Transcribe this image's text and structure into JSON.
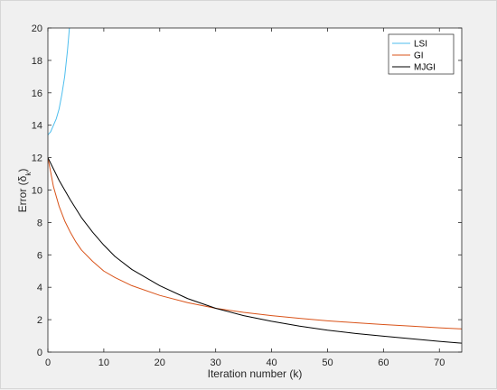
{
  "chart_data": {
    "type": "line",
    "xlabel": "Iteration number (k)",
    "ylabel_prefix": "Error (",
    "ylabel_symbol": "δ",
    "ylabel_subscript": "k",
    "ylabel_suffix": ")",
    "xlim": [
      0,
      74
    ],
    "ylim": [
      0,
      20
    ],
    "xticks": [
      0,
      10,
      20,
      30,
      40,
      50,
      60,
      70
    ],
    "yticks": [
      0,
      2,
      4,
      6,
      8,
      10,
      12,
      14,
      16,
      18,
      20
    ],
    "grid": false,
    "legend_position": "top-right",
    "series": [
      {
        "name": "LSI",
        "color": "#4dbeee",
        "x": [
          0,
          0.5,
          1,
          1.5,
          2,
          2.5,
          3,
          3.5,
          4
        ],
        "y": [
          13.4,
          13.6,
          14.0,
          14.4,
          15.0,
          15.9,
          17.0,
          18.6,
          20.6
        ]
      },
      {
        "name": "GI",
        "color": "#d95319",
        "x": [
          0,
          1,
          2,
          3,
          4,
          5,
          6,
          8,
          10,
          12,
          15,
          20,
          25,
          30,
          35,
          40,
          45,
          50,
          55,
          60,
          65,
          70,
          74
        ],
        "y": [
          12.0,
          10.2,
          9.0,
          8.1,
          7.4,
          6.8,
          6.3,
          5.6,
          5.0,
          4.6,
          4.1,
          3.5,
          3.05,
          2.7,
          2.45,
          2.25,
          2.08,
          1.93,
          1.81,
          1.7,
          1.6,
          1.5,
          1.43
        ]
      },
      {
        "name": "MJGI",
        "color": "#000000",
        "x": [
          0,
          2,
          4,
          6,
          8,
          10,
          12,
          15,
          20,
          25,
          30,
          35,
          40,
          45,
          50,
          55,
          60,
          65,
          70,
          74
        ],
        "y": [
          12.0,
          10.6,
          9.4,
          8.3,
          7.4,
          6.6,
          5.9,
          5.1,
          4.1,
          3.3,
          2.7,
          2.25,
          1.9,
          1.6,
          1.35,
          1.15,
          0.98,
          0.82,
          0.66,
          0.55
        ]
      }
    ]
  }
}
